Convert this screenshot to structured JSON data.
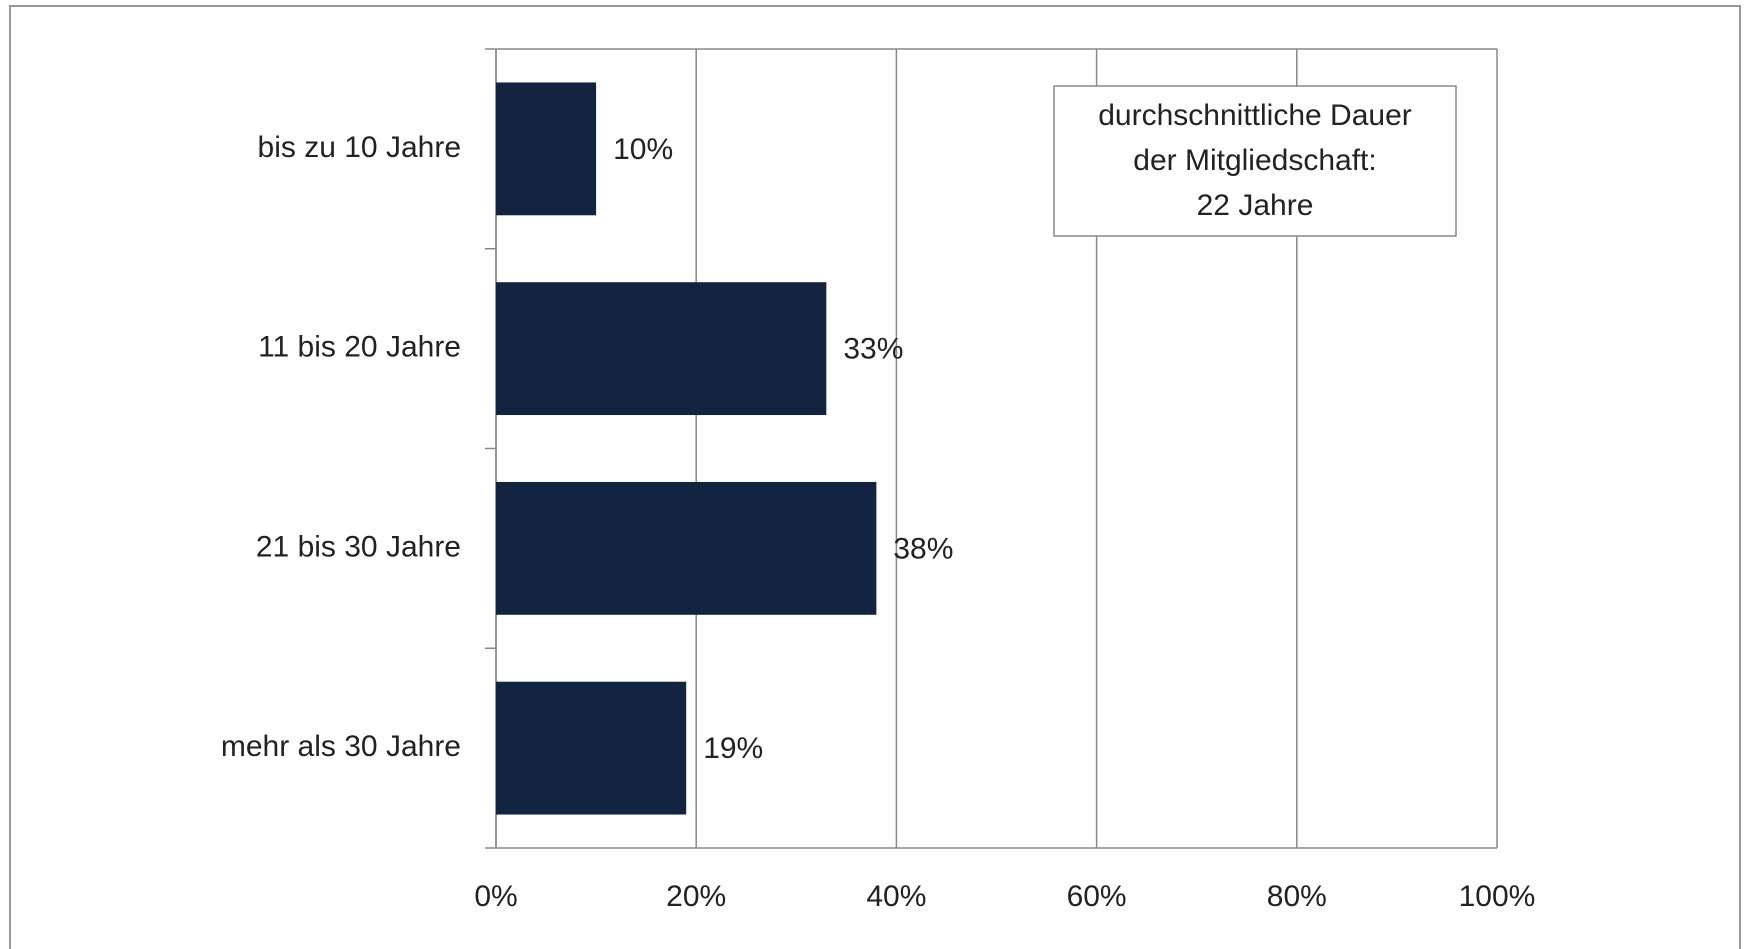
{
  "chart_data": {
    "type": "hbar",
    "categories": [
      "bis zu 10 Jahre",
      "11 bis 20 Jahre",
      "21 bis 30 Jahre",
      "mehr als 30 Jahre"
    ],
    "values": [
      10,
      33,
      38,
      19
    ],
    "value_labels": [
      "10%",
      "33%",
      "38%",
      "19%"
    ],
    "color": "#12243f",
    "xlim": [
      0,
      100
    ],
    "xticks": [
      {
        "value": 0,
        "label": "0%"
      },
      {
        "value": 20,
        "label": "20%"
      },
      {
        "value": 40,
        "label": "40%"
      },
      {
        "value": 60,
        "label": "60%"
      },
      {
        "value": 80,
        "label": "80%"
      },
      {
        "value": 100,
        "label": "100%"
      }
    ],
    "grid": true,
    "annotation": [
      "durchschnittliche Dauer",
      "der Mitgliedschaft:",
      "22 Jahre"
    ]
  }
}
